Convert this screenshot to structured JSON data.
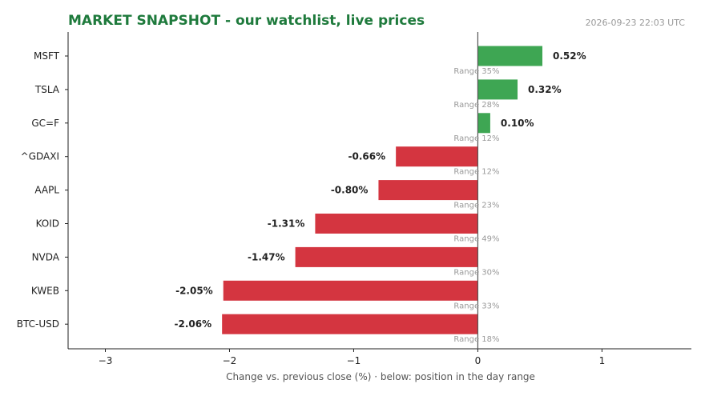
{
  "header": {
    "title": "MARKET SNAPSHOT - our watchlist, live prices",
    "timestamp": "2026-09-23 22:03 UTC"
  },
  "colors": {
    "positive": "#3ea653",
    "negative": "#d43540",
    "title": "#1e7a3c",
    "zero_line": "#555555",
    "muted_text": "#999999"
  },
  "chart_data": {
    "type": "bar",
    "orientation": "horizontal",
    "title": "MARKET SNAPSHOT - our watchlist, live prices",
    "xlabel": "Change vs. previous close (%)  ·  below: position in the day range",
    "ylabel": "",
    "xlim": [
      -3.3,
      1.72
    ],
    "x_ticks": [
      -3,
      -2,
      -1,
      0,
      1
    ],
    "x_tick_labels": [
      "−3",
      "−2",
      "−1",
      "0",
      "1"
    ],
    "grid": false,
    "categories": [
      "MSFT",
      "TSLA",
      "GC=F",
      "^GDAXI",
      "AAPL",
      "KOID",
      "NVDA",
      "KWEB",
      "BTC-USD"
    ],
    "values": [
      0.52,
      0.32,
      0.1,
      -0.66,
      -0.8,
      -1.31,
      -1.47,
      -2.05,
      -2.06
    ],
    "value_labels": [
      "0.52%",
      "0.32%",
      "0.10%",
      "-0.66%",
      "-0.80%",
      "-1.31%",
      "-1.47%",
      "-2.05%",
      "-2.06%"
    ],
    "range_labels": [
      "Range 35%",
      "Range 28%",
      "Range 12%",
      "Range 12%",
      "Range 23%",
      "Range 49%",
      "Range 30%",
      "Range 33%",
      "Range 18%"
    ]
  }
}
